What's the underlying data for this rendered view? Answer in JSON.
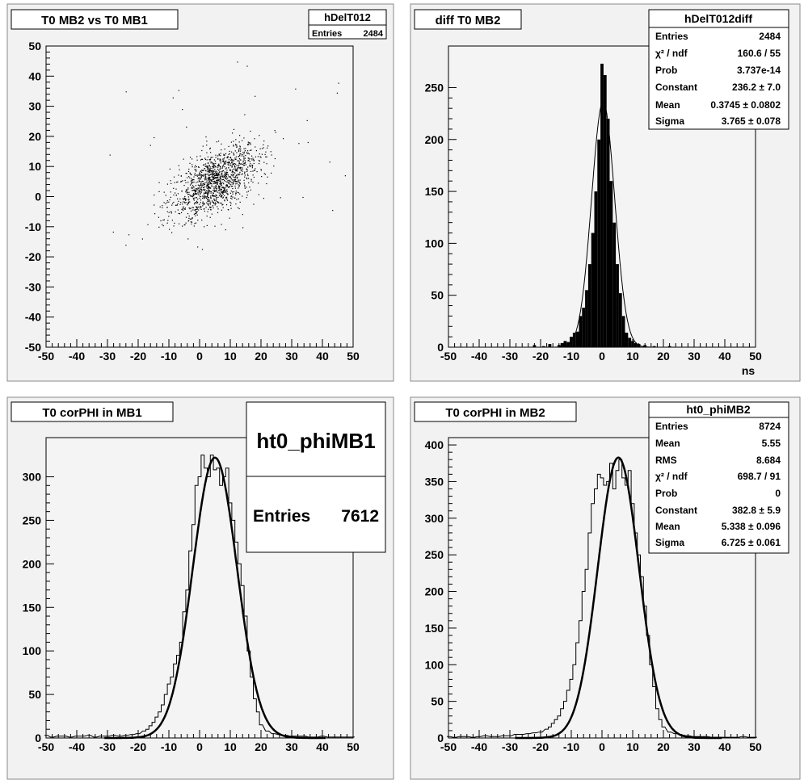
{
  "chart_data": [
    {
      "type": "scatter",
      "title": "T0 MB2 vs T0 MB1",
      "xlabel": "",
      "ylabel": "",
      "xlim": [
        -50,
        50
      ],
      "ylim": [
        -50,
        50
      ],
      "xticks": [
        -50,
        -40,
        -30,
        -20,
        -10,
        0,
        10,
        20,
        30,
        40,
        50
      ],
      "yticks": [
        -50,
        -40,
        -30,
        -20,
        -10,
        0,
        10,
        20,
        30,
        40,
        50
      ],
      "stats": {
        "name": "hDelT012",
        "rows": [
          {
            "label": "Entries",
            "value": "2484"
          }
        ]
      },
      "distribution": {
        "entries": 2484,
        "mean_x": 5,
        "mean_y": 5,
        "sigma_x": 7,
        "sigma_y": 6,
        "correlation": 0.55
      }
    },
    {
      "type": "bar",
      "title": "diff T0 MB2",
      "xlabel": "ns",
      "ylabel": "",
      "xlim": [
        -50,
        50
      ],
      "ylim": [
        0,
        290
      ],
      "xticks": [
        -50,
        -40,
        -30,
        -20,
        -10,
        0,
        10,
        20,
        30,
        40,
        50
      ],
      "yticks": [
        0,
        50,
        100,
        150,
        200,
        250
      ],
      "bin_width": 1,
      "x": [
        -22,
        -19,
        -17,
        -14,
        -13,
        -12,
        -11,
        -10,
        -9,
        -8,
        -7,
        -6,
        -5,
        -4,
        -3,
        -2,
        -1,
        0,
        1,
        2,
        3,
        4,
        5,
        6,
        7,
        8,
        9,
        10,
        11,
        12,
        14,
        17,
        22
      ],
      "values": [
        2,
        1,
        3,
        2,
        4,
        6,
        5,
        10,
        14,
        15,
        30,
        38,
        55,
        80,
        110,
        150,
        200,
        273,
        262,
        220,
        160,
        120,
        80,
        52,
        30,
        14,
        9,
        6,
        4,
        3,
        2,
        1,
        1
      ],
      "fit": {
        "type": "gaussian",
        "constant": 236.2,
        "mean": 0.3745,
        "sigma": 3.765
      },
      "stats": {
        "name": "hDelT012diff",
        "rows": [
          {
            "label": "Entries",
            "value": "2484"
          },
          {
            "label": "χ² / ndf",
            "value": "160.6 / 55"
          },
          {
            "label": "Prob",
            "value": "3.737e-14"
          },
          {
            "label": "Constant",
            "value": "236.2 ± 7.0"
          },
          {
            "label": "Mean",
            "value": "0.3745 ± 0.0802"
          },
          {
            "label": "Sigma",
            "value": "3.765 ± 0.078"
          }
        ]
      }
    },
    {
      "type": "line",
      "title": "T0 corPHI in MB1",
      "xlabel": "",
      "ylabel": "",
      "xlim": [
        -50,
        50
      ],
      "ylim": [
        0,
        345
      ],
      "xticks": [
        -50,
        -40,
        -30,
        -20,
        -10,
        0,
        10,
        20,
        30,
        40,
        50
      ],
      "yticks": [
        0,
        50,
        100,
        150,
        200,
        250,
        300
      ],
      "bin_width": 1,
      "x": [
        -50,
        -48,
        -46,
        -44,
        -42,
        -40,
        -38,
        -36,
        -34,
        -32,
        -30,
        -28,
        -26,
        -24,
        -22,
        -20,
        -18,
        -17,
        -16,
        -15,
        -14,
        -13,
        -12,
        -11,
        -10,
        -9,
        -8,
        -7,
        -6,
        -5,
        -4,
        -3,
        -2,
        -1,
        0,
        1,
        2,
        3,
        4,
        5,
        6,
        7,
        8,
        9,
        10,
        11,
        12,
        13,
        14,
        15,
        16,
        17,
        18,
        19,
        20,
        22,
        24,
        26,
        28,
        30,
        32,
        34,
        36,
        38,
        40,
        42,
        44,
        46,
        48,
        50
      ],
      "values": [
        3,
        1,
        2,
        2,
        1,
        2,
        2,
        3,
        1,
        2,
        2,
        3,
        2,
        3,
        4,
        5,
        8,
        10,
        14,
        18,
        24,
        30,
        38,
        50,
        62,
        70,
        85,
        95,
        110,
        145,
        170,
        215,
        245,
        290,
        300,
        325,
        310,
        300,
        325,
        308,
        310,
        290,
        300,
        310,
        270,
        250,
        225,
        200,
        175,
        140,
        100,
        70,
        45,
        30,
        15,
        8,
        5,
        4,
        3,
        2,
        2,
        2,
        1,
        1,
        2,
        1,
        1,
        1,
        1,
        1
      ],
      "fit": {
        "type": "gaussian",
        "peak": 322,
        "mean": 5,
        "sigma": 7.2
      },
      "stats": {
        "name": "ht0_phiMB1",
        "rows": [
          {
            "label": "Entries",
            "value": "7612"
          }
        ]
      }
    },
    {
      "type": "line",
      "title": "T0 corPHI in MB2",
      "xlabel": "",
      "ylabel": "",
      "xlim": [
        -50,
        50
      ],
      "ylim": [
        0,
        410
      ],
      "xticks": [
        -50,
        -40,
        -30,
        -20,
        -10,
        0,
        10,
        20,
        30,
        40,
        50
      ],
      "yticks": [
        0,
        50,
        100,
        150,
        200,
        250,
        300,
        350,
        400
      ],
      "bin_width": 1,
      "x": [
        -50,
        -48,
        -46,
        -44,
        -42,
        -40,
        -38,
        -36,
        -34,
        -32,
        -30,
        -28,
        -26,
        -24,
        -22,
        -20,
        -18,
        -17,
        -16,
        -15,
        -14,
        -13,
        -12,
        -11,
        -10,
        -9,
        -8,
        -7,
        -6,
        -5,
        -4,
        -3,
        -2,
        -1,
        0,
        1,
        2,
        3,
        4,
        5,
        6,
        7,
        8,
        9,
        10,
        11,
        12,
        13,
        14,
        15,
        16,
        17,
        18,
        19,
        20,
        22,
        24,
        26,
        28,
        30,
        32,
        34,
        36,
        38,
        40,
        42,
        44,
        46,
        48,
        50
      ],
      "values": [
        2,
        1,
        2,
        2,
        1,
        2,
        3,
        2,
        2,
        3,
        3,
        5,
        5,
        6,
        7,
        8,
        12,
        15,
        20,
        25,
        30,
        40,
        50,
        65,
        80,
        100,
        130,
        160,
        200,
        230,
        280,
        320,
        340,
        360,
        355,
        345,
        350,
        375,
        340,
        365,
        380,
        355,
        345,
        365,
        320,
        280,
        250,
        220,
        180,
        140,
        100,
        70,
        40,
        25,
        15,
        8,
        6,
        4,
        3,
        2,
        2,
        2,
        1,
        1,
        1,
        1,
        1,
        2,
        1,
        1
      ],
      "fit": {
        "type": "gaussian",
        "constant": 382.8,
        "mean": 5.338,
        "sigma": 6.725
      },
      "stats": {
        "name": "ht0_phiMB2",
        "rows": [
          {
            "label": "Entries",
            "value": "8724"
          },
          {
            "label": "Mean",
            "value": "5.55"
          },
          {
            "label": "RMS",
            "value": "8.684"
          },
          {
            "label": "χ² / ndf",
            "value": "698.7 / 91"
          },
          {
            "label": "Prob",
            "value": "0"
          },
          {
            "label": "Constant",
            "value": "382.8 ± 5.9"
          },
          {
            "label": "Mean",
            "value": "5.338 ± 0.096"
          },
          {
            "label": "Sigma",
            "value": "6.725 ± 0.061"
          }
        ]
      }
    }
  ]
}
